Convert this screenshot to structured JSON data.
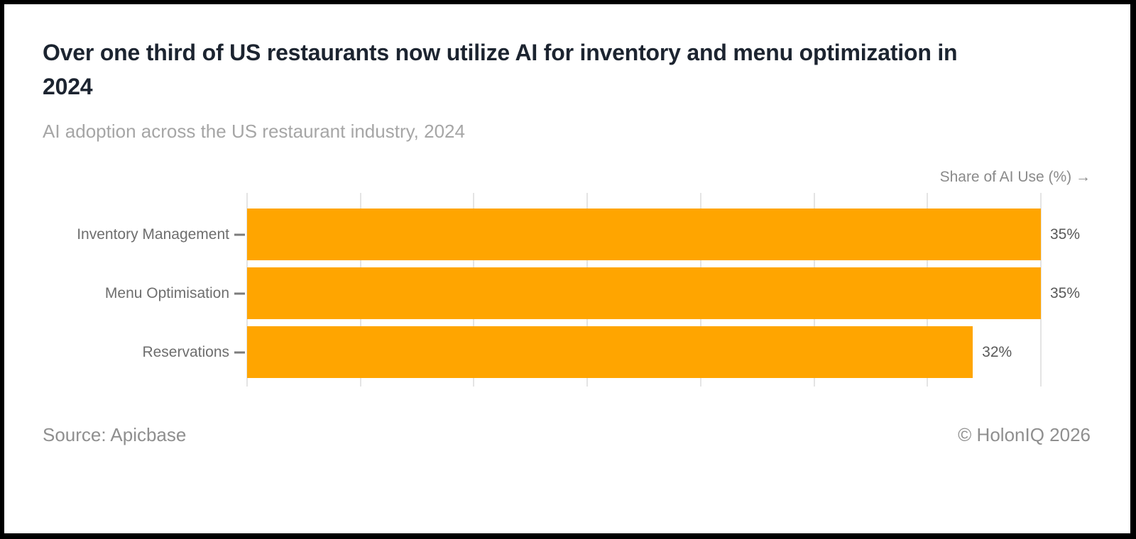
{
  "header": {
    "title": "Over one third of US restaurants now utilize AI for inventory and menu optimization in 2024",
    "subtitle": "AI adoption across the US restaurant industry, 2024"
  },
  "chart_data": {
    "type": "bar",
    "orientation": "horizontal",
    "title": "Over one third of US restaurants now utilize AI for inventory and menu optimization in 2024",
    "subtitle": "AI adoption across the US restaurant industry, 2024",
    "axis_title": "Share of AI Use (%) →",
    "categories": [
      "Inventory Management",
      "Menu Optimisation",
      "Reservations"
    ],
    "values": [
      35,
      35,
      32
    ],
    "value_labels": [
      "35%",
      "35%",
      "32%"
    ],
    "xlim": [
      0,
      35
    ],
    "ticks": [
      0,
      5,
      10,
      15,
      20,
      25,
      30,
      35
    ],
    "grid": "vertical gridlines every 5, no tick number labels",
    "legend": "none",
    "bar_color": "#FFA500"
  },
  "footer": {
    "source": "Source: Apicbase",
    "copyright": "© HolonIQ 2026"
  },
  "colors": {
    "frame": "#000000",
    "card_background": "#ffffff",
    "title_text": "#1c2430",
    "subtitle_text": "#a6a6a6",
    "axis_text": "#8a8a8a",
    "category_text": "#6e6e6e",
    "value_text": "#595959",
    "gridline": "#e4e4e4",
    "tick": "#7c7c7c",
    "bar": "#FFA500"
  }
}
